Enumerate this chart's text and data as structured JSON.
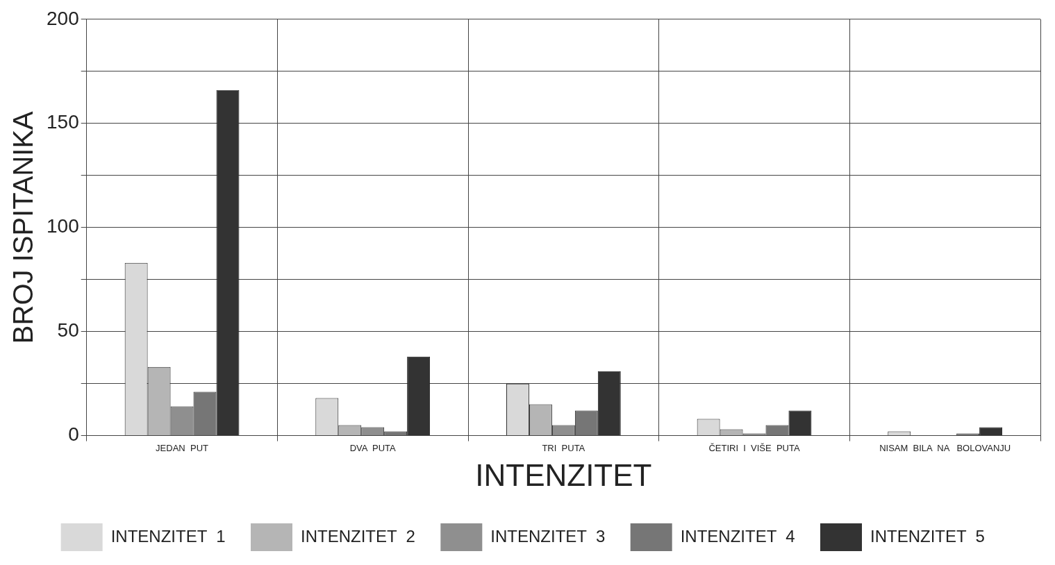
{
  "chart_data": {
    "type": "bar",
    "xlabel": "INTENZITET",
    "ylabel": "BROJ ISPITANIKA",
    "categories": [
      "JEDAN  PUT",
      "DVA  PUTA",
      "TRI  PUTA",
      "ČETIRI  I  VIŠE  PUTA",
      "NISAM  BILA  NA   BOLOVANJU"
    ],
    "series": [
      {
        "name": "INTENZITET  1",
        "color": "#d9d9d9",
        "values": [
          83,
          18,
          25,
          8,
          2
        ]
      },
      {
        "name": "INTENZITET  2",
        "color": "#b5b5b5",
        "values": [
          33,
          5,
          15,
          3,
          0
        ]
      },
      {
        "name": "INTENZITET  3",
        "color": "#8f8f8f",
        "values": [
          14,
          4,
          5,
          1,
          0
        ]
      },
      {
        "name": "INTENZITET  4",
        "color": "#767676",
        "values": [
          21,
          2,
          12,
          5,
          1
        ]
      },
      {
        "name": "INTENZITET  5",
        "color": "#333333",
        "values": [
          166,
          38,
          31,
          12,
          4
        ]
      }
    ],
    "ylim": [
      0,
      200
    ],
    "yticks": [
      0,
      {
        "value": 25,
        "label": null
      },
      50,
      {
        "value": 75,
        "label": null
      },
      100,
      {
        "value": 125,
        "label": null
      },
      150,
      {
        "value": 175,
        "label": null
      },
      200
    ],
    "grid": true,
    "legend": "bottom"
  }
}
